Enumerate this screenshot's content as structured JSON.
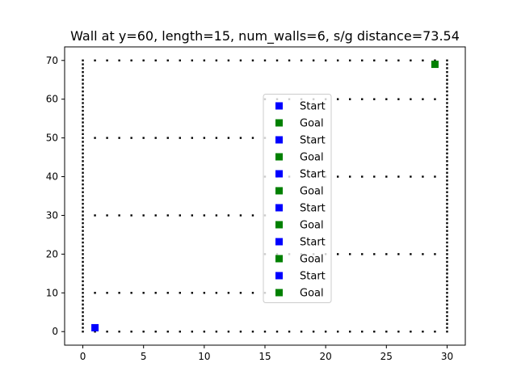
{
  "chart_data": {
    "type": "scatter",
    "title": "Wall at y=60, length=15, num_walls=6, s/g distance=73.54",
    "xlabel": "",
    "ylabel": "",
    "xlim": [
      -1.5,
      31.5
    ],
    "ylim": [
      -3.5,
      73.5
    ],
    "xticks": [
      0,
      5,
      10,
      15,
      20,
      25,
      30
    ],
    "yticks": [
      0,
      10,
      20,
      30,
      40,
      50,
      60,
      70
    ],
    "grid": false,
    "wall_dot_step": 1,
    "walls": [
      {
        "name": "left-boundary",
        "x": [
          0,
          0
        ],
        "y": [
          0,
          70
        ]
      },
      {
        "name": "right-boundary",
        "x": [
          30,
          30
        ],
        "y": [
          0,
          70
        ]
      },
      {
        "name": "bottom-boundary",
        "x": [
          1,
          29
        ],
        "y": [
          0,
          0
        ]
      },
      {
        "name": "top-boundary",
        "x": [
          1,
          29
        ],
        "y": [
          70,
          70
        ]
      },
      {
        "name": "wall-y10",
        "x": [
          1,
          15
        ],
        "y": [
          10,
          10
        ]
      },
      {
        "name": "wall-y20",
        "x": [
          15,
          29
        ],
        "y": [
          20,
          20
        ]
      },
      {
        "name": "wall-y30",
        "x": [
          1,
          15
        ],
        "y": [
          30,
          30
        ]
      },
      {
        "name": "wall-y40",
        "x": [
          15,
          29
        ],
        "y": [
          40,
          40
        ]
      },
      {
        "name": "wall-y50",
        "x": [
          1,
          15
        ],
        "y": [
          50,
          50
        ]
      },
      {
        "name": "wall-y60",
        "x": [
          15,
          29
        ],
        "y": [
          60,
          60
        ]
      }
    ],
    "start": {
      "x": 1,
      "y": 1
    },
    "goal": {
      "x": 29,
      "y": 69
    },
    "legend_position": "center",
    "legend": [
      {
        "label": "Start",
        "color": "#0000ff"
      },
      {
        "label": "Goal",
        "color": "#008000"
      },
      {
        "label": "Start",
        "color": "#0000ff"
      },
      {
        "label": "Goal",
        "color": "#008000"
      },
      {
        "label": "Start",
        "color": "#0000ff"
      },
      {
        "label": "Goal",
        "color": "#008000"
      },
      {
        "label": "Start",
        "color": "#0000ff"
      },
      {
        "label": "Goal",
        "color": "#008000"
      },
      {
        "label": "Start",
        "color": "#0000ff"
      },
      {
        "label": "Goal",
        "color": "#008000"
      },
      {
        "label": "Start",
        "color": "#0000ff"
      },
      {
        "label": "Goal",
        "color": "#008000"
      }
    ],
    "colors": {
      "wall": "#000000",
      "start": "#0000ff",
      "goal": "#008000"
    }
  }
}
